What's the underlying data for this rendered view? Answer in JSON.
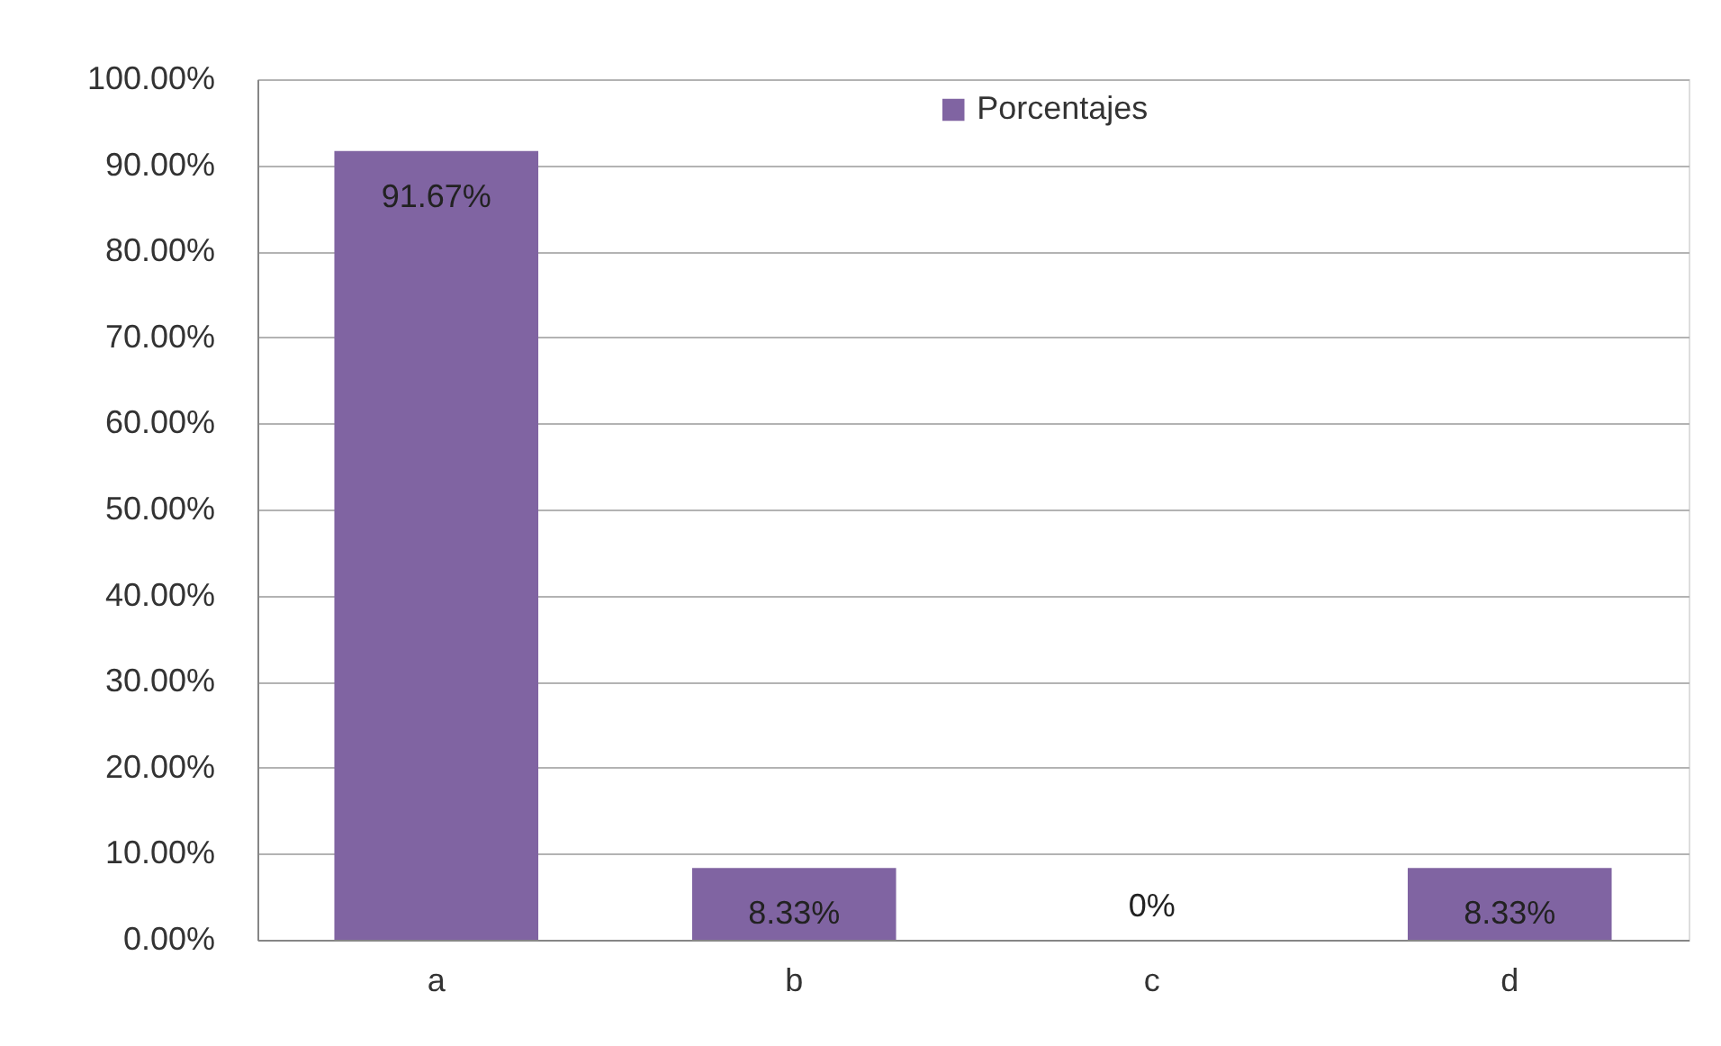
{
  "chart_data": {
    "type": "bar",
    "categories": [
      "a",
      "b",
      "c",
      "d"
    ],
    "series": [
      {
        "name": "Porcentajes",
        "color": "#8064a2",
        "values": [
          91.67,
          8.33,
          0,
          8.33
        ],
        "value_labels": [
          "91.67%",
          "8.33%",
          "0%",
          "8.33%"
        ]
      }
    ],
    "ylim": [
      0,
      100
    ],
    "yticks": [
      {
        "value": 0,
        "label": "0.00%"
      },
      {
        "value": 10,
        "label": "10.00%"
      },
      {
        "value": 20,
        "label": "20.00%"
      },
      {
        "value": 30,
        "label": "30.00%"
      },
      {
        "value": 40,
        "label": "40.00%"
      },
      {
        "value": 50,
        "label": "50.00%"
      },
      {
        "value": 60,
        "label": "60.00%"
      },
      {
        "value": 70,
        "label": "70.00%"
      },
      {
        "value": 80,
        "label": "80.00%"
      },
      {
        "value": 90,
        "label": "90.00%"
      },
      {
        "value": 100,
        "label": "100.00%"
      }
    ],
    "grid": "y",
    "legend": "top"
  }
}
